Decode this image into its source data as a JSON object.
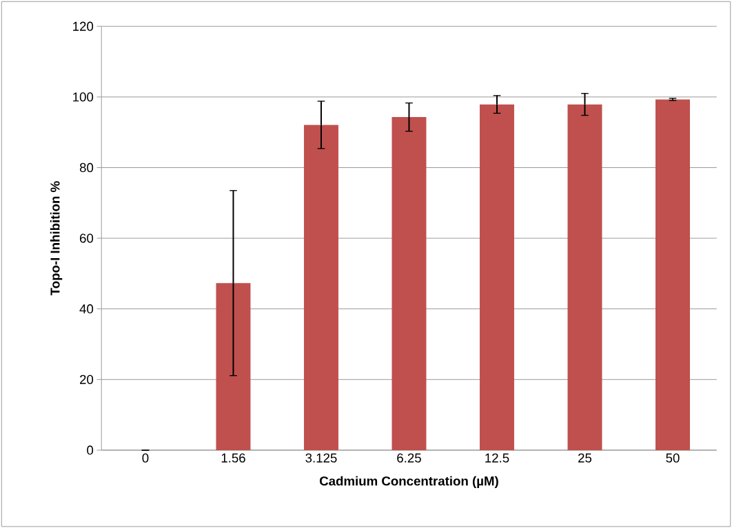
{
  "chart_data": {
    "type": "bar",
    "xlabel": "Cadmium Concentration (µM)",
    "ylabel": "Topo-I Inhibition %",
    "categories": [
      "0",
      "1.56",
      "3.125",
      "6.25",
      "12.5",
      "25",
      "50"
    ],
    "values": [
      0,
      47.3,
      92.1,
      94.3,
      97.9,
      97.9,
      99.3
    ],
    "errors": [
      0,
      26.2,
      6.7,
      4,
      2.5,
      3.1,
      0.3
    ],
    "color": "#c0504d",
    "ylim": [
      0,
      120
    ],
    "yticks": [
      0,
      20,
      40,
      60,
      80,
      100,
      120
    ],
    "grid": "y"
  }
}
